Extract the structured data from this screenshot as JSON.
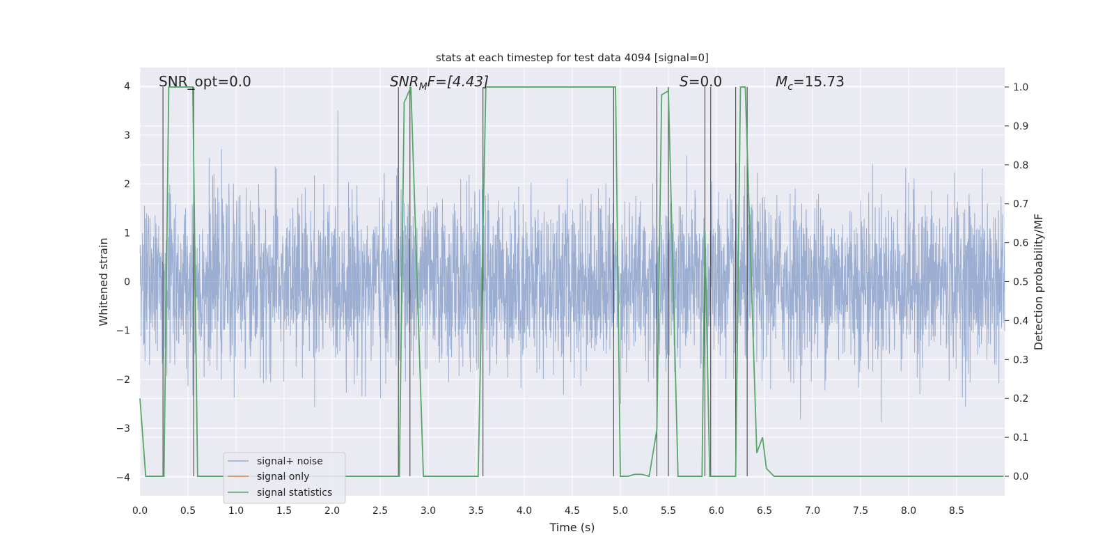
{
  "chart_data": {
    "type": "line",
    "title": "stats at each timestep for test data 4094 [signal=0]",
    "xlabel": "Time (s)",
    "ylabel_left": "Whitened strain",
    "ylabel_right": "Detection probability/MF",
    "xlim": [
      0.0,
      9.0
    ],
    "ylim_left": [
      -4.38,
      4.38
    ],
    "ylim_right": [
      -0.05,
      1.05
    ],
    "xticks": [
      "0.0",
      "0.5",
      "1.0",
      "1.5",
      "2.0",
      "2.5",
      "3.0",
      "3.5",
      "4.0",
      "4.5",
      "5.0",
      "5.5",
      "6.0",
      "6.5",
      "7.0",
      "7.5",
      "8.0",
      "8.5"
    ],
    "yticks_left": [
      "4",
      "3",
      "2",
      "1",
      "0",
      "−1",
      "−2",
      "−3",
      "−4"
    ],
    "yticks_right": [
      "1.0",
      "0.9",
      "0.8",
      "0.7",
      "0.6",
      "0.5",
      "0.4",
      "0.3",
      "0.2",
      "0.1",
      "0.0"
    ],
    "annotations": {
      "snr_opt": "SNR_opt=0.0",
      "snr_mf_sym": "SNR",
      "snr_mf_sub": "M",
      "snr_mf_rest": "F=[4.43]",
      "s_sym": "S",
      "s_rest": "=0.0",
      "mc_sym": "M",
      "mc_sub": "c",
      "mc_rest": "=15.73"
    },
    "legend": [
      "signal+ noise",
      "signal only",
      "signal statistics"
    ],
    "series": [
      {
        "name": "signal statistics",
        "color": "#55a868",
        "x": [
          0.0,
          0.06,
          0.25,
          0.3,
          0.55,
          0.6,
          2.7,
          2.75,
          2.82,
          2.95,
          3.52,
          3.6,
          4.95,
          5.0,
          5.08,
          5.15,
          5.22,
          5.3,
          5.38,
          5.43,
          5.5,
          5.6,
          5.85,
          5.88,
          5.93,
          6.2,
          6.25,
          6.3,
          6.42,
          6.48,
          6.52,
          6.6,
          8.99
        ],
        "y": [
          0.2,
          0.0,
          0.0,
          1.0,
          1.0,
          0.0,
          0.0,
          0.96,
          1.0,
          0.0,
          0.0,
          1.0,
          1.0,
          0.0,
          0.0,
          0.005,
          0.005,
          0.0,
          0.12,
          0.98,
          0.99,
          0.0,
          0.0,
          0.63,
          0.0,
          0.0,
          1.0,
          1.0,
          0.06,
          0.1,
          0.02,
          0.0,
          0.0
        ]
      },
      {
        "name": "signal only",
        "color": "#dd8452",
        "x": [],
        "y": []
      },
      {
        "name": "signal+ noise",
        "color": "#4c72b0",
        "note": "dense whitened noise, roughly in [-3.4, 3.5], 1 sigma ~ 0.8"
      }
    ],
    "vertical_lines_x": [
      0.24,
      0.56,
      2.69,
      2.81,
      3.57,
      4.93,
      5.38,
      5.5,
      5.88,
      5.94,
      6.2,
      6.32
    ]
  }
}
